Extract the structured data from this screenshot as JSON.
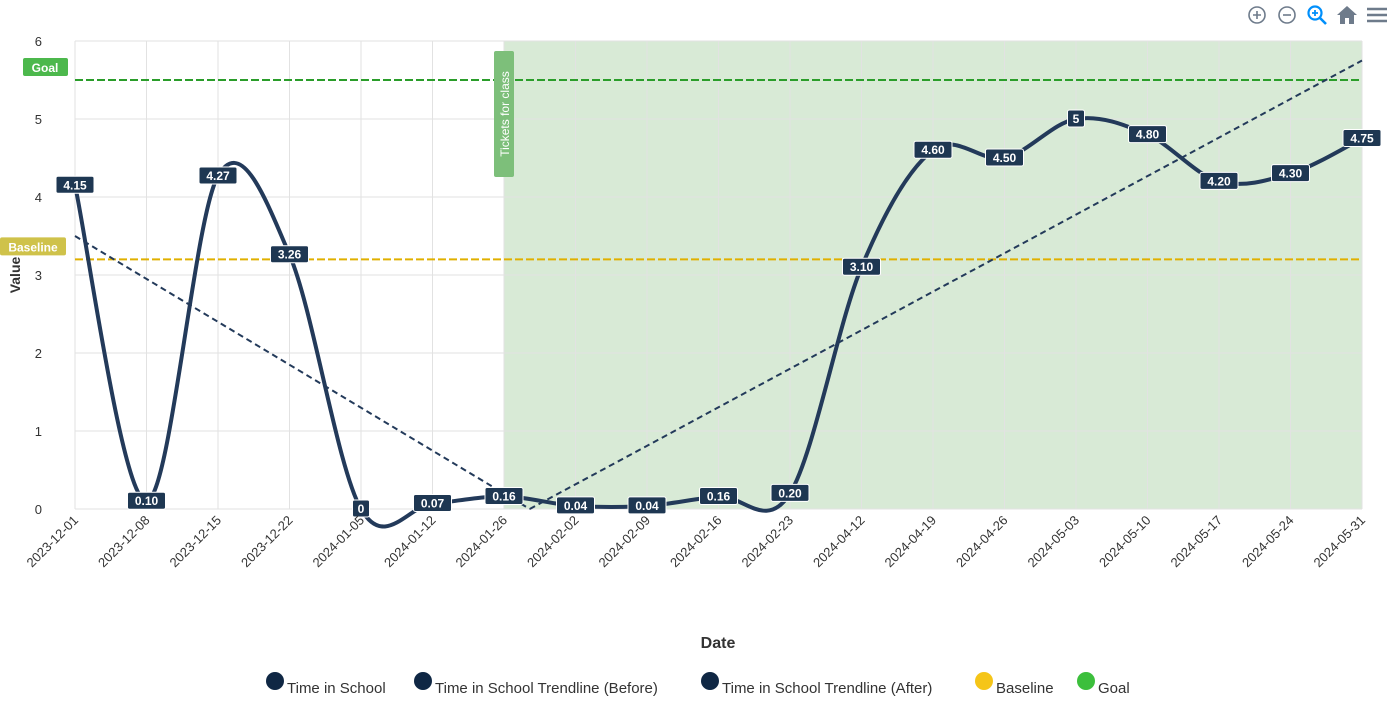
{
  "toolbar": {
    "icons": [
      "zoom-in-icon",
      "zoom-out-icon",
      "selection-zoom-icon",
      "home-icon",
      "menu-icon"
    ]
  },
  "chart_data": {
    "type": "line",
    "xlabel": "Date",
    "ylabel": "Value",
    "ylim": [
      0,
      6
    ],
    "yticks": [
      "0",
      "1",
      "2",
      "3",
      "4",
      "5",
      "6"
    ],
    "categories": [
      "2023-12-01",
      "2023-12-08",
      "2023-12-15",
      "2023-12-22",
      "2024-01-05",
      "2024-01-12",
      "2024-01-26",
      "2024-02-02",
      "2024-02-09",
      "2024-02-16",
      "2024-02-23",
      "2024-04-12",
      "2024-04-19",
      "2024-04-26",
      "2024-05-03",
      "2024-05-10",
      "2024-05-17",
      "2024-05-24",
      "2024-05-31"
    ],
    "series": [
      {
        "name": "Time in School",
        "color": "#233a5a",
        "values": [
          4.15,
          0.1,
          4.27,
          3.26,
          0,
          0.07,
          0.16,
          0.04,
          0.04,
          0.16,
          0.2,
          3.1,
          4.6,
          4.5,
          5,
          4.8,
          4.2,
          4.3,
          4.75
        ],
        "labels": [
          "4.15",
          "0.10",
          "4.27",
          "3.26",
          "0",
          "0.07",
          "0.16",
          "0.04",
          "0.04",
          "0.16",
          "0.20",
          "3.10",
          "4.60",
          "4.50",
          "5",
          "4.80",
          "4.20",
          "4.30",
          "4.75"
        ]
      },
      {
        "name": "Time in School Trendline (Before)",
        "color": "#233a5a",
        "points": [
          [
            0,
            3.5
          ],
          [
            6.36,
            0
          ]
        ]
      },
      {
        "name": "Time in School Trendline (After)",
        "color": "#233a5a",
        "points": [
          [
            6.36,
            0
          ],
          [
            18,
            5.75
          ]
        ]
      },
      {
        "name": "Baseline",
        "color": "#e0b000",
        "value": 3.2
      },
      {
        "name": "Goal",
        "color": "#2a9d2a",
        "value": 5.5
      }
    ],
    "legend_colors": [
      "#0f2744",
      "#0f2744",
      "#0f2744",
      "#f5c518",
      "#3cbf3c"
    ],
    "annotations": {
      "baseline_label": "Baseline",
      "goal_label": "Goal",
      "phase_label": "Tickets for class",
      "phase_start_index": 6,
      "phase_end_index": 18,
      "phase_color": "#d8ead6"
    },
    "legend_placement": "bottom"
  }
}
